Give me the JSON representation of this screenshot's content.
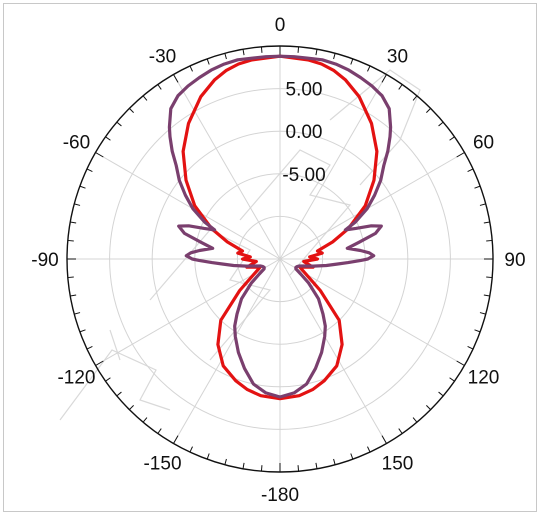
{
  "chart_data": {
    "type": "polar",
    "angle_ticks": [
      {
        "angle": 0,
        "label": "0"
      },
      {
        "angle": 30,
        "label": "30"
      },
      {
        "angle": 60,
        "label": "60"
      },
      {
        "angle": 90,
        "label": "90"
      },
      {
        "angle": 120,
        "label": "120"
      },
      {
        "angle": 150,
        "label": "150"
      },
      {
        "angle": 180,
        "label": "-180"
      },
      {
        "angle": -150,
        "label": "-150"
      },
      {
        "angle": -120,
        "label": "-120"
      },
      {
        "angle": -90,
        "label": "-90"
      },
      {
        "angle": -60,
        "label": "-60"
      },
      {
        "angle": -30,
        "label": "-30"
      }
    ],
    "radial_ticks": [
      {
        "value": 5,
        "label": "5.00"
      },
      {
        "value": 0,
        "label": "0.00"
      },
      {
        "value": -5,
        "label": "-5.00"
      }
    ],
    "r_range": [
      -15,
      10
    ],
    "grid": true,
    "series": [
      {
        "color": "#e31212",
        "angles": [
          0,
          8,
          12,
          16,
          20,
          26,
          34,
          42,
          50,
          58,
          66,
          72,
          78,
          82,
          86,
          90,
          96,
          104,
          112,
          120,
          128,
          136,
          144,
          152,
          160,
          166,
          172,
          180
        ],
        "values": [
          8.8,
          8.6,
          8.4,
          8.0,
          7.4,
          6.2,
          4.2,
          2.0,
          -0.6,
          -3.2,
          -6.2,
          -8.5,
          -10.5,
          -10.0,
          -11.5,
          -10.6,
          -12.2,
          -11.0,
          -12.5,
          -11.5,
          -9.0,
          -5.0,
          -2.6,
          -0.8,
          0.2,
          0.8,
          1.2,
          1.4
        ]
      },
      {
        "color": "#7a3f6e",
        "angles": [
          0,
          4,
          8,
          12,
          16,
          20,
          24,
          28,
          32,
          36,
          40,
          42,
          45,
          48,
          52,
          56,
          60,
          64,
          66,
          68,
          70,
          72,
          75,
          78,
          81,
          84,
          86,
          88,
          90,
          91,
          93,
          95,
          98,
          102,
          106,
          110,
          114,
          118,
          122,
          126,
          130,
          136,
          142,
          146,
          150,
          156,
          162,
          168,
          174,
          180
        ],
        "values": [
          8.8,
          8.8,
          8.8,
          8.9,
          8.8,
          8.6,
          8.3,
          8.0,
          7.6,
          6.8,
          5.2,
          4.3,
          2.9,
          1.4,
          0.0,
          -1.6,
          -3.2,
          -5.2,
          -6.6,
          -5.4,
          -3.6,
          -2.5,
          -3.4,
          -5.5,
          -7.0,
          -5.5,
          -4.5,
          -4.0,
          -4.7,
          -5.5,
          -7.0,
          -8.2,
          -9.5,
          -11.0,
          -12.0,
          -12.6,
          -12.8,
          -12.9,
          -12.8,
          -12.0,
          -10.6,
          -8.5,
          -6.8,
          -5.5,
          -4.5,
          -3.0,
          -1.5,
          0.0,
          0.8,
          1.2
        ]
      }
    ]
  }
}
